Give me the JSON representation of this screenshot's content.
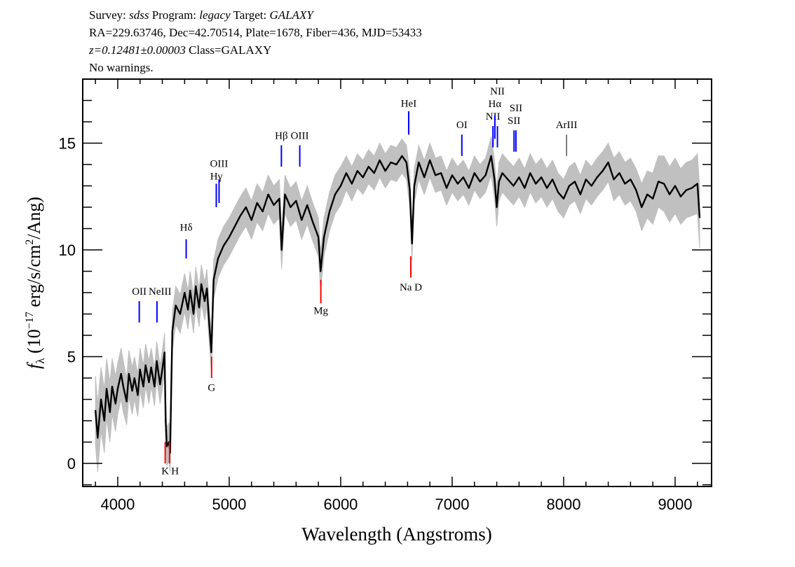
{
  "header": {
    "line1": {
      "survey_label": "Survey:",
      "survey": "sdss",
      "program_label": "Program:",
      "program": "legacy",
      "target_label": "Target:",
      "target": "GALAXY"
    },
    "line2": "RA=229.63746, Dec=42.70514, Plate=1678, Fiber=436, MJD=53433",
    "line3": {
      "redshift": "z=0.12481±0.00003",
      "class": "Class=GALAXY"
    },
    "line4": "No warnings."
  },
  "chart_data": {
    "type": "line",
    "xlabel": "Wavelength (Angstroms)",
    "ylabel": "fλ (10^-17 erg/s/cm^2/Ang)",
    "xlim": [
      3686,
      9327
    ],
    "ylim": [
      -1.08,
      18.0
    ],
    "xticks": [
      4000,
      5000,
      6000,
      7000,
      8000,
      9000
    ],
    "yticks": [
      0,
      5,
      10,
      15
    ],
    "grid": false,
    "colors": {
      "flux": "#000000",
      "error": "#c0c0c0",
      "emission": "#0000ff",
      "absorption": "#ff0000",
      "other": "#000000"
    },
    "spectrum": {
      "wavelength": [
        3800,
        3820,
        3850,
        3880,
        3900,
        3930,
        3950,
        3980,
        4000,
        4030,
        4050,
        4080,
        4100,
        4130,
        4150,
        4180,
        4200,
        4230,
        4250,
        4280,
        4300,
        4330,
        4350,
        4380,
        4400,
        4420,
        4430,
        4440,
        4460,
        4470,
        4480,
        4490,
        4520,
        4560,
        4600,
        4630,
        4650,
        4680,
        4700,
        4730,
        4750,
        4780,
        4800,
        4820,
        4840,
        4860,
        4900,
        4950,
        5000,
        5050,
        5100,
        5150,
        5200,
        5250,
        5300,
        5350,
        5400,
        5450,
        5470,
        5500,
        5550,
        5600,
        5650,
        5700,
        5750,
        5800,
        5820,
        5850,
        5900,
        5950,
        6000,
        6050,
        6100,
        6150,
        6200,
        6250,
        6300,
        6350,
        6400,
        6450,
        6500,
        6550,
        6590,
        6620,
        6640,
        6660,
        6700,
        6750,
        6800,
        6850,
        6900,
        6950,
        7000,
        7050,
        7100,
        7150,
        7200,
        7250,
        7300,
        7350,
        7380,
        7400,
        7420,
        7450,
        7500,
        7550,
        7600,
        7650,
        7700,
        7750,
        7800,
        7850,
        7900,
        7950,
        8000,
        8050,
        8100,
        8150,
        8200,
        8250,
        8300,
        8350,
        8400,
        8450,
        8500,
        8550,
        8600,
        8650,
        8700,
        8750,
        8800,
        8850,
        8900,
        8950,
        9000,
        9050,
        9100,
        9150,
        9200,
        9220
      ],
      "flux": [
        2.5,
        1.2,
        3.0,
        2.0,
        3.5,
        2.4,
        3.6,
        2.8,
        3.5,
        4.2,
        3.6,
        2.9,
        4.2,
        3.4,
        4.0,
        3.2,
        4.4,
        3.6,
        4.6,
        3.8,
        4.5,
        3.6,
        4.8,
        3.7,
        4.4,
        5.2,
        2.0,
        0.8,
        1.0,
        0.5,
        3.5,
        6.2,
        7.4,
        7.0,
        8.0,
        7.2,
        8.1,
        7.0,
        8.3,
        7.3,
        8.4,
        7.6,
        8.2,
        6.6,
        5.2,
        8.6,
        9.6,
        10.2,
        10.6,
        11.1,
        11.6,
        12.0,
        11.4,
        12.2,
        11.8,
        12.6,
        12.1,
        12.4,
        10.0,
        12.6,
        12.0,
        12.3,
        11.4,
        12.1,
        11.3,
        10.6,
        9.0,
        10.6,
        11.8,
        12.6,
        13.0,
        13.6,
        13.1,
        13.7,
        13.4,
        13.9,
        13.6,
        14.2,
        13.7,
        14.1,
        14.0,
        14.4,
        14.1,
        12.8,
        10.3,
        13.0,
        14.1,
        13.4,
        14.2,
        13.5,
        13.6,
        12.9,
        13.5,
        13.1,
        13.4,
        12.9,
        13.6,
        13.2,
        13.5,
        14.4,
        13.3,
        12.0,
        13.2,
        13.6,
        13.3,
        13.0,
        13.4,
        12.9,
        13.6,
        13.1,
        13.4,
        12.9,
        13.3,
        12.7,
        12.4,
        13.0,
        13.2,
        12.6,
        13.3,
        13.0,
        13.4,
        13.7,
        14.1,
        13.3,
        13.6,
        13.1,
        13.3,
        12.8,
        12.0,
        12.6,
        12.4,
        13.2,
        13.1,
        12.6,
        13.0,
        12.5,
        12.8,
        12.9,
        13.1,
        11.5
      ],
      "error": [
        1.6,
        1.6,
        1.5,
        1.5,
        1.4,
        1.4,
        1.3,
        1.3,
        1.2,
        1.2,
        1.2,
        1.1,
        1.1,
        1.1,
        1.0,
        1.0,
        1.0,
        1.0,
        1.0,
        1.0,
        0.9,
        0.9,
        0.9,
        0.9,
        0.9,
        0.9,
        0.9,
        0.9,
        0.9,
        0.9,
        0.9,
        0.9,
        0.9,
        0.9,
        0.9,
        0.9,
        0.9,
        0.9,
        0.9,
        0.9,
        0.9,
        0.9,
        0.9,
        0.9,
        0.9,
        0.9,
        0.9,
        0.9,
        0.9,
        0.9,
        0.9,
        0.9,
        0.9,
        0.9,
        0.9,
        0.9,
        0.9,
        0.9,
        0.9,
        0.9,
        0.9,
        0.9,
        0.9,
        0.9,
        0.9,
        0.9,
        0.9,
        0.9,
        0.9,
        0.9,
        0.9,
        0.8,
        0.8,
        0.8,
        0.8,
        0.8,
        0.8,
        0.8,
        0.8,
        0.8,
        0.8,
        0.8,
        0.8,
        0.8,
        0.8,
        0.8,
        0.8,
        0.8,
        0.8,
        0.8,
        0.8,
        0.8,
        0.8,
        0.8,
        0.8,
        0.8,
        0.8,
        0.8,
        0.8,
        0.9,
        0.9,
        0.9,
        0.9,
        0.9,
        0.9,
        0.9,
        0.9,
        0.9,
        0.9,
        0.9,
        0.9,
        0.9,
        0.9,
        0.9,
        0.9,
        0.9,
        0.9,
        0.9,
        0.9,
        0.9,
        0.9,
        0.9,
        0.9,
        1.0,
        1.0,
        1.0,
        1.0,
        1.0,
        1.1,
        1.1,
        1.2,
        1.2,
        1.3,
        1.3,
        1.3,
        1.3,
        1.3,
        1.3,
        1.4,
        1.4
      ]
    },
    "lines": [
      {
        "label": "OII",
        "wavelength": 4193,
        "type": "emission",
        "top": 7.6,
        "bottom": 6.6,
        "label_y": 7.9
      },
      {
        "label": "NeIII",
        "wavelength": 4352,
        "type": "emission",
        "top": 7.6,
        "bottom": 6.6,
        "label_y": 7.9
      },
      {
        "label": "K",
        "wavelength": 4426,
        "type": "absorption",
        "top": 1.0,
        "bottom": 0.0,
        "label_y": -0.5
      },
      {
        "label": "H",
        "wavelength": 4465,
        "type": "absorption",
        "top": 1.0,
        "bottom": 0.0,
        "label_y": -0.5
      },
      {
        "label": "Hδ",
        "wavelength": 4614,
        "type": "emission",
        "top": 10.5,
        "bottom": 9.6,
        "label_y": 10.9
      },
      {
        "label": "G",
        "wavelength": 4842,
        "type": "absorption",
        "top": 5.0,
        "bottom": 4.0,
        "label_y": 3.4
      },
      {
        "label": "Hγ",
        "wavelength": 4884,
        "type": "emission",
        "top": 13.1,
        "bottom": 12.0,
        "label_y": 13.3
      },
      {
        "label": "OIII",
        "wavelength": 4909,
        "type": "emission",
        "top": 13.3,
        "bottom": 12.2,
        "label_y": 13.6
      },
      {
        "label": "Hβ",
        "wavelength": 5468,
        "type": "emission",
        "top": 14.9,
        "bottom": 13.9,
        "label_y": 15.2
      },
      {
        "label": "OIII",
        "wavelength": 5633,
        "type": "emission",
        "top": 14.9,
        "bottom": 13.9,
        "label_y": 15.2
      },
      {
        "label": "Mg",
        "wavelength": 5822,
        "type": "absorption",
        "top": 8.6,
        "bottom": 7.5,
        "label_y": 7.0
      },
      {
        "label": "HeI",
        "wavelength": 6610,
        "type": "emission",
        "top": 16.5,
        "bottom": 15.4,
        "label_y": 16.7
      },
      {
        "label": "Na D",
        "wavelength": 6629,
        "type": "absorption",
        "top": 9.7,
        "bottom": 8.7,
        "label_y": 8.1
      },
      {
        "label": "OI",
        "wavelength": 7087,
        "type": "emission",
        "top": 15.4,
        "bottom": 14.4,
        "label_y": 15.7
      },
      {
        "label": "NII",
        "wavelength": 7366,
        "type": "emission",
        "top": 15.8,
        "bottom": 14.8,
        "label_y": 16.1
      },
      {
        "label": "Hα",
        "wavelength": 7383,
        "type": "emission",
        "top": 16.3,
        "bottom": 15.2,
        "label_y": 16.6
      },
      {
        "label": "NII",
        "wavelength": 7406,
        "type": "emission",
        "top": 15.8,
        "bottom": 14.8,
        "label_y": 16.1
      },
      {
        "label": "SII",
        "wavelength": 7555,
        "type": "emission",
        "top": 15.6,
        "bottom": 14.6,
        "label_y": 15.9
      },
      {
        "label": "SII",
        "wavelength": 7572,
        "type": "emission",
        "top": 15.6,
        "bottom": 14.6,
        "label_y": 15.9
      },
      {
        "label": "ArIII",
        "wavelength": 8026,
        "type": "other",
        "top": 15.4,
        "bottom": 14.4,
        "label_y": 15.7
      }
    ]
  }
}
